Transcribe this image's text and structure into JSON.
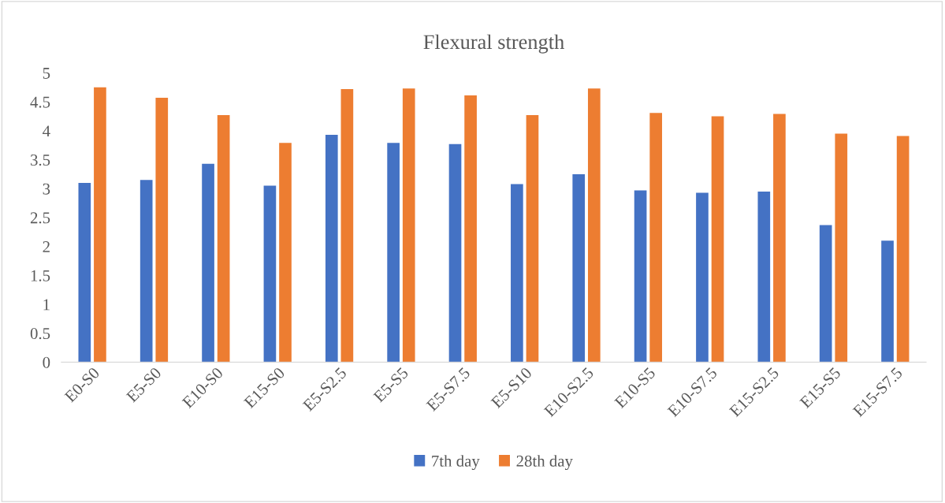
{
  "chart_data": {
    "type": "bar",
    "title": "Flexural strength",
    "categories": [
      "E0-S0",
      "E5-S0",
      "E10-S0",
      "E15-S0",
      "E5-S2.5",
      "E5-S5",
      "E5-S7.5",
      "E5-S10",
      "E10-S2.5",
      "E10-S5",
      "E10-S7.5",
      "E15-S2.5",
      "E15-S5",
      "E15-S7.5"
    ],
    "series": [
      {
        "name": "7th day",
        "color": "#4472c4",
        "values": [
          3.1,
          3.15,
          3.43,
          3.05,
          3.93,
          3.79,
          3.77,
          3.08,
          3.25,
          2.97,
          2.93,
          2.95,
          2.37,
          2.1
        ]
      },
      {
        "name": "28th day",
        "color": "#ed7d31",
        "values": [
          4.75,
          4.57,
          4.27,
          3.79,
          4.72,
          4.73,
          4.61,
          4.27,
          4.73,
          4.31,
          4.25,
          4.29,
          3.95,
          3.91
        ]
      }
    ],
    "ylim": [
      0,
      5
    ],
    "yticks": [
      0,
      0.5,
      1,
      1.5,
      2,
      2.5,
      3,
      3.5,
      4,
      4.5,
      5
    ],
    "grid": false,
    "legend": "bottom"
  }
}
